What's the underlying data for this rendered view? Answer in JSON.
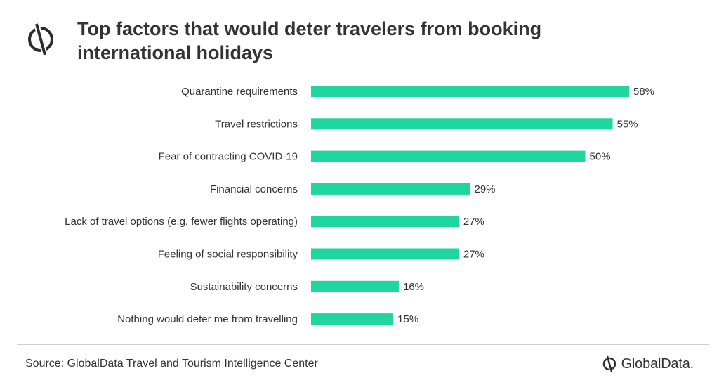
{
  "header": {
    "title": "Top factors that would deter travelers from booking\ninternational holidays",
    "icon": "globaldata-logo-icon"
  },
  "footer": {
    "source": "Source: GlobalData Travel and Tourism Intelligence Center",
    "brand_name": "GlobalData."
  },
  "colors": {
    "bar": "#20d6a0",
    "text": "#333333"
  },
  "chart_data": {
    "type": "bar",
    "orientation": "horizontal",
    "title": "Top factors that would deter travelers from booking international holidays",
    "categories": [
      "Quarantine requirements",
      "Travel restrictions",
      "Fear of contracting COVID-19",
      "Financial concerns",
      "Lack of travel options (e.g. fewer flights operating)",
      "Feeling of social responsibility",
      "Sustainability concerns",
      "Nothing would deter me from travelling"
    ],
    "values": [
      58,
      55,
      50,
      29,
      27,
      27,
      16,
      15
    ],
    "value_labels": [
      "58%",
      "55%",
      "50%",
      "29%",
      "27%",
      "27%",
      "16%",
      "15%"
    ],
    "xlim": [
      0,
      58
    ],
    "grid": false,
    "legend": "none"
  }
}
